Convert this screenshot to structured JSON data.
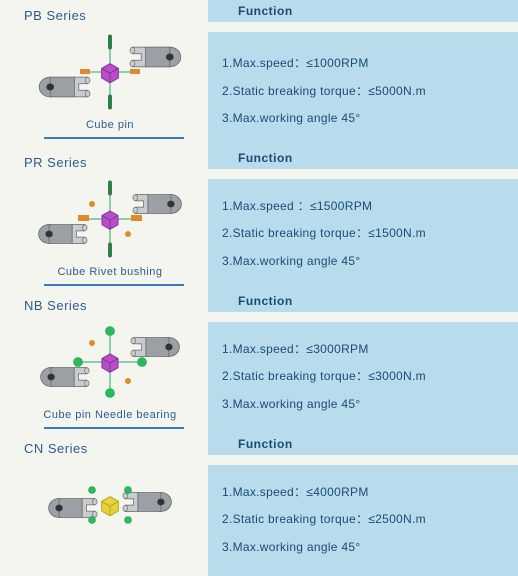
{
  "colors": {
    "bg": "#f5f5f0",
    "panel": "#b9dced",
    "text": "#1a4a75",
    "title": "#2b5b8f",
    "rule": "#3a7bbf",
    "yoke": "#9aa0a6",
    "yoke_light": "#c8ccd0",
    "cube": "#b84fc7",
    "cube_dark": "#8a2c9a",
    "pin_green": "#1a8a3a",
    "pin_orange": "#e08a2a",
    "bearing_green": "#2fb85a",
    "cn_core": "#e8d23a"
  },
  "series": [
    {
      "title": "PB  Series",
      "caption": "Cube   pin",
      "func_header": "Function",
      "specs": [
        "1.Max.speed：≤1000RPM",
        "2.Static breaking torque：≤5000N.m",
        "3.Max.working angle 45°"
      ],
      "diagram": "pb"
    },
    {
      "title": "PR  Series",
      "caption": "Cube Rivet bushing",
      "func_header": "Function",
      "specs": [
        "1.Max.speed ：≤1500RPM",
        "2.Static breaking torque：≤1500N.m",
        "3.Max.working angle 45°"
      ],
      "diagram": "pr"
    },
    {
      "title": "NB  Series",
      "caption": "Cube pin  Needle bearing",
      "func_header": "Function",
      "specs": [
        "1.Max.speed：≤3000RPM",
        "2.Static breaking torque：≤3000N.m",
        "3.Max.working angle 45°"
      ],
      "diagram": "nb"
    },
    {
      "title": "CN  Series",
      "caption": "",
      "func_header": "Function",
      "specs": [
        "1.Max.speed：≤4000RPM",
        "2.Static breaking torque：≤2500N.m",
        "3.Max.working angle 45°"
      ],
      "diagram": "cn"
    }
  ]
}
